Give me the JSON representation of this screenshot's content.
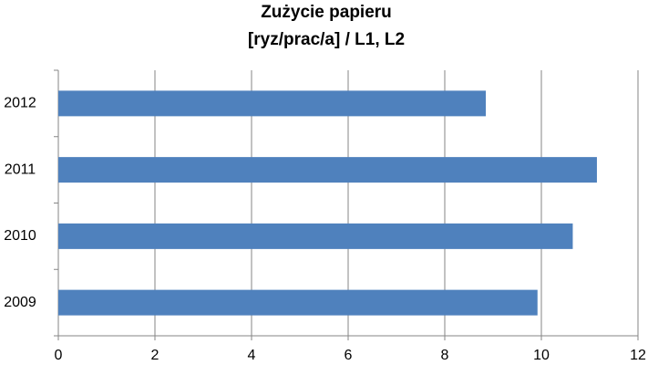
{
  "chart_data": {
    "type": "barh",
    "title": "Zużycie papieru",
    "subtitle": "[ryz/prac/a] / L1, L2",
    "categories": [
      "2009",
      "2010",
      "2011",
      "2012"
    ],
    "values": [
      9.92,
      10.65,
      11.15,
      8.85
    ],
    "color": "#4f81bd",
    "xlim": [
      0,
      12
    ],
    "xticks": [
      0,
      2,
      4,
      6,
      8,
      10,
      12
    ],
    "grid": true
  }
}
